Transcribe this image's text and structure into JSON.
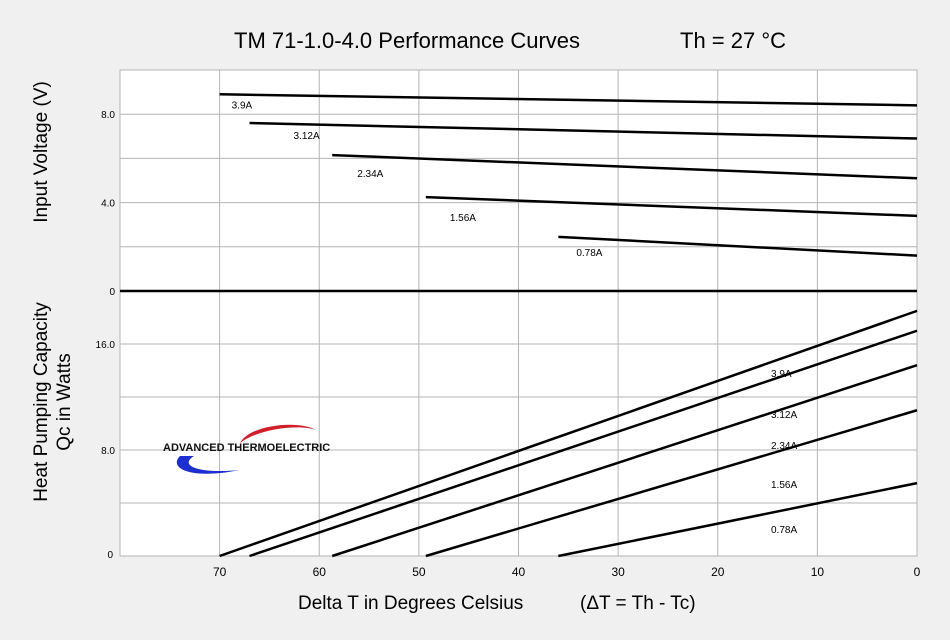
{
  "chart_data": {
    "type": "line",
    "title": "TM 71-1.0-4.0 Performance Curves",
    "condition": "Th = 27 °C",
    "xlabel": "Delta T in Degrees Celsius",
    "xlabel_formula": "(ΔT = Th - Tc)",
    "xlim": [
      80,
      0
    ],
    "x_ticks": [
      "70",
      "60",
      "50",
      "40",
      "30",
      "20",
      "10",
      "0"
    ],
    "x_tick_values": [
      70,
      60,
      50,
      40,
      30,
      20,
      10,
      0
    ],
    "upper_panel": {
      "ylabel": "Input Voltage (V)",
      "ylim": [
        0,
        10
      ],
      "y_ticks": [
        "8.0",
        "4.0",
        "0"
      ],
      "y_tick_values": [
        8,
        4,
        0
      ],
      "series": [
        {
          "name": "3.9A",
          "x": [
            70,
            0
          ],
          "y": [
            8.9,
            8.4
          ]
        },
        {
          "name": "3.12A",
          "x": [
            67,
            0
          ],
          "y": [
            7.6,
            6.9
          ]
        },
        {
          "name": "2.34A",
          "x": [
            58.7,
            0
          ],
          "y": [
            6.15,
            5.1
          ]
        },
        {
          "name": "1.56A",
          "x": [
            49.3,
            0
          ],
          "y": [
            4.25,
            3.4
          ]
        },
        {
          "name": "0.78A",
          "x": [
            36,
            0
          ],
          "y": [
            2.45,
            1.6
          ]
        }
      ]
    },
    "lower_panel": {
      "ylabel": "Heat Pumping Capacity",
      "ylabel2": "Qc in Watts",
      "ylim": [
        0,
        20
      ],
      "y_ticks": [
        "16.0",
        "8.0",
        "0"
      ],
      "y_tick_values": [
        16,
        8,
        0
      ],
      "series": [
        {
          "name": "3.9A",
          "x": [
            70,
            0
          ],
          "y": [
            0,
            18.5
          ]
        },
        {
          "name": "3.12A",
          "x": [
            67,
            0
          ],
          "y": [
            0,
            17.0
          ]
        },
        {
          "name": "2.34A",
          "x": [
            58.7,
            0
          ],
          "y": [
            0,
            14.4
          ]
        },
        {
          "name": "1.56A",
          "x": [
            49.3,
            0
          ],
          "y": [
            0,
            11.0
          ]
        },
        {
          "name": "0.78A",
          "x": [
            36,
            0
          ],
          "y": [
            0,
            5.5
          ]
        }
      ]
    }
  },
  "logo": {
    "text": "ADVANCED THERMOELECTRIC"
  },
  "colors": {
    "plot_bg": "#ffffff",
    "grid": "#b4b4b4",
    "line": "#000000",
    "logo_red": "#d11f2a",
    "logo_blue": "#1d2fd0"
  }
}
